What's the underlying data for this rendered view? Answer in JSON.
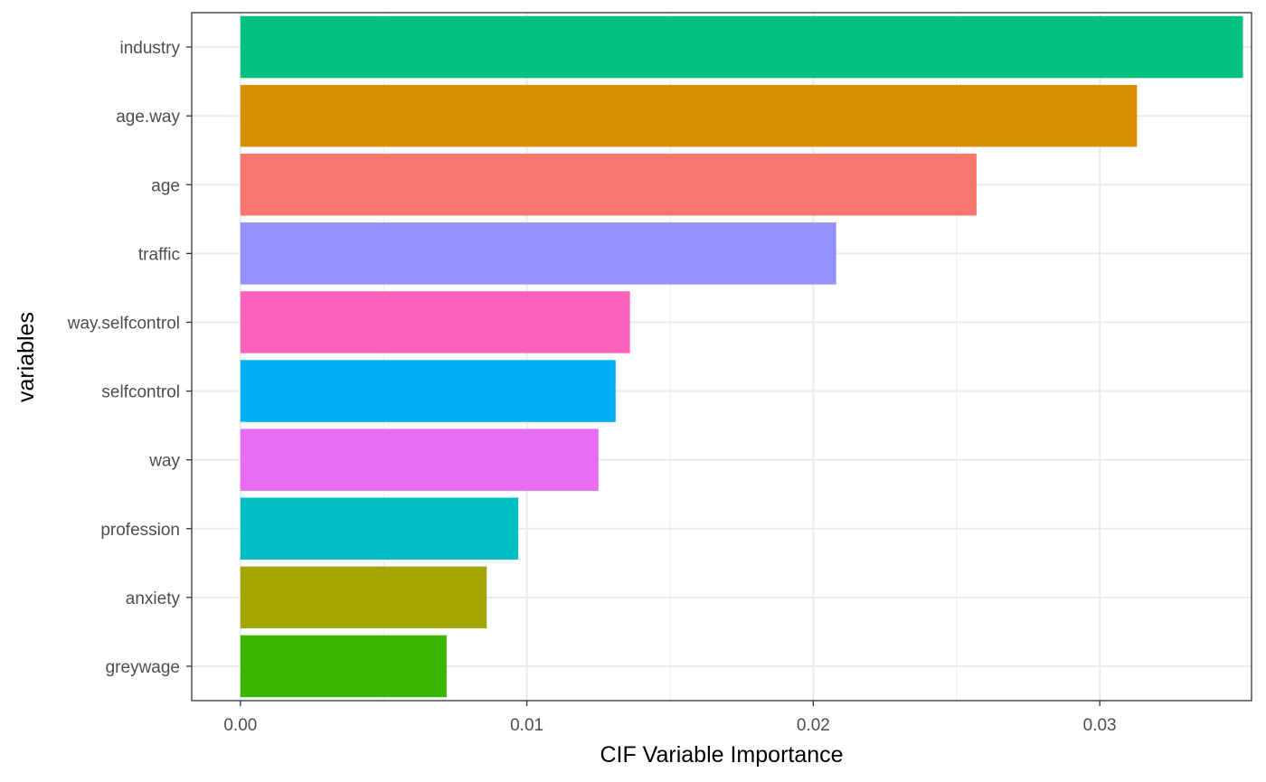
{
  "chart_data": {
    "type": "bar",
    "orientation": "horizontal",
    "title": "",
    "xlabel": "CIF Variable Importance",
    "ylabel": "variables",
    "xlim": [
      -0.0017,
      0.0353
    ],
    "x_ticks": [
      0.0,
      0.01,
      0.02,
      0.03
    ],
    "x_tick_labels": [
      "0.00",
      "0.01",
      "0.02",
      "0.03"
    ],
    "grid": true,
    "legend": "none",
    "categories": [
      "industry",
      "age.way",
      "age",
      "traffic",
      "way.selfcontrol",
      "selfcontrol",
      "way",
      "profession",
      "anxiety",
      "greywage"
    ],
    "values": [
      0.035,
      0.0313,
      0.0257,
      0.0208,
      0.0136,
      0.0131,
      0.0125,
      0.0097,
      0.0086,
      0.0072
    ],
    "colors": [
      "#00C080",
      "#D89000",
      "#F8766D",
      "#9590FF",
      "#FF62BC",
      "#00B0F6",
      "#E76BF3",
      "#00BFC4",
      "#A3A500",
      "#39B600"
    ]
  }
}
